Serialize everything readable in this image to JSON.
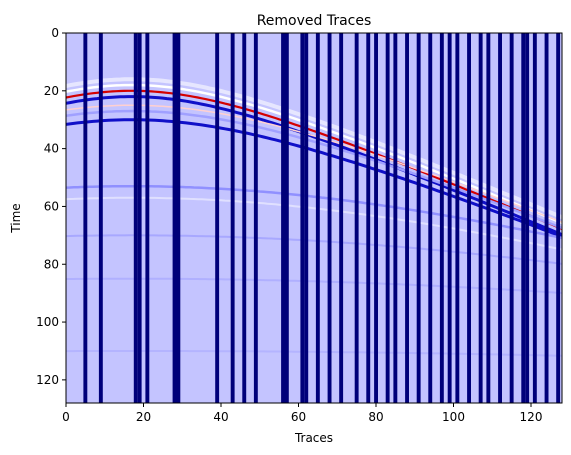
{
  "chart_data": {
    "type": "heatmap",
    "title": "Removed Traces",
    "xlabel": "Traces",
    "ylabel": "Time",
    "xlim": [
      0,
      128
    ],
    "ylim": [
      128,
      0
    ],
    "x_ticks": [
      0,
      20,
      40,
      60,
      80,
      100,
      120
    ],
    "y_ticks": [
      0,
      20,
      40,
      60,
      80,
      100,
      120
    ],
    "colormap": "seismic",
    "colors": {
      "background": "#c4c4ff",
      "removed_trace": "#00007a",
      "positive": "#d40000",
      "negative": "#1010c8"
    },
    "removed_trace_columns": [
      5,
      9,
      18,
      19,
      21,
      28,
      29,
      39,
      43,
      46,
      49,
      56,
      57,
      61,
      62,
      65,
      68,
      71,
      75,
      78,
      80,
      83,
      85,
      88,
      91,
      94,
      97,
      99,
      101,
      104,
      107,
      109,
      112,
      115,
      118,
      119,
      121,
      124,
      127
    ],
    "events": [
      {
        "apex_trace": 17,
        "apex_time": 20,
        "description": "strong hyperbolic event"
      },
      {
        "apex_trace": 17,
        "apex_time": 27,
        "description": "secondary event"
      },
      {
        "apex_trace": 17,
        "apex_time": 53,
        "description": "faint event"
      },
      {
        "apex_trace": 17,
        "apex_time": 70,
        "description": "faint event"
      }
    ]
  }
}
